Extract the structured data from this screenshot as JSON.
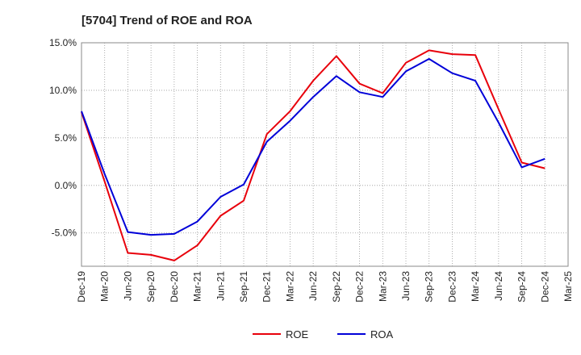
{
  "chart_data": {
    "type": "line",
    "title": "[5704]  Trend of ROE and ROA",
    "xlabel": "",
    "ylabel": "",
    "x": [
      "Dec-19",
      "Mar-20",
      "Jun-20",
      "Sep-20",
      "Dec-20",
      "Mar-21",
      "Jun-21",
      "Sep-21",
      "Dec-21",
      "Mar-22",
      "Jun-22",
      "Sep-22",
      "Dec-22",
      "Mar-23",
      "Jun-23",
      "Sep-23",
      "Dec-23",
      "Mar-24",
      "Jun-24",
      "Sep-24",
      "Dec-24",
      "Mar-25"
    ],
    "ylim": [
      -8.5,
      15.0
    ],
    "yticks": [
      15.0,
      10.0,
      5.0,
      0.0,
      -5.0
    ],
    "ytick_labels": [
      "15.0%",
      "10.0%",
      "5.0%",
      "0.0%",
      "-5.0%"
    ],
    "grid": true,
    "legend_position": "bottom-center",
    "series": [
      {
        "name": "ROE",
        "color": "#e8000b",
        "values": [
          7.7,
          0.4,
          -7.1,
          -7.3,
          -7.9,
          -6.3,
          -3.2,
          -1.6,
          5.4,
          7.8,
          11.0,
          13.6,
          10.7,
          9.7,
          12.9,
          14.2,
          13.8,
          13.7,
          8.0,
          2.4,
          1.8,
          null
        ]
      },
      {
        "name": "ROA",
        "color": "#0000d8",
        "values": [
          7.8,
          1.2,
          -4.9,
          -5.2,
          -5.1,
          -3.8,
          -1.2,
          0.1,
          4.6,
          6.8,
          9.3,
          11.5,
          9.8,
          9.3,
          12.0,
          13.3,
          11.8,
          11.0,
          6.6,
          1.9,
          2.8,
          null
        ]
      }
    ]
  }
}
